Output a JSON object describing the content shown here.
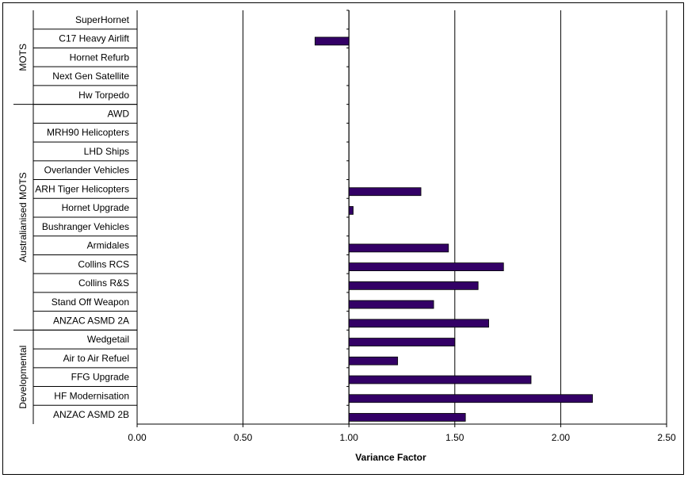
{
  "chart_data": {
    "type": "bar",
    "orientation": "horizontal",
    "title": "",
    "xlabel": "Variance Factor",
    "ylabel": "",
    "xlim": [
      0,
      2.5
    ],
    "x_ticks": [
      "0.00",
      "0.50",
      "1.00",
      "1.50",
      "2.00",
      "2.50"
    ],
    "x_tick_values": [
      0,
      0.5,
      1.0,
      1.5,
      2.0,
      2.5
    ],
    "baseline": 1.0,
    "grid": "vertical major gridlines",
    "legend": "none",
    "bar_color": "#330066",
    "categories": [
      "SuperHornet",
      "C17 Heavy Airlift",
      "Hornet Refurb",
      "Next Gen Satellite",
      "Hw  Torpedo",
      "AWD",
      "MRH90 Helicopters",
      "LHD Ships",
      "Overlander Vehicles",
      "ARH Tiger Helicopters",
      "Hornet Upgrade",
      "Bushranger Vehicles",
      "Armidales",
      "Collins RCS",
      "Collins R&S",
      "Stand Off Weapon",
      "ANZAC ASMD 2A",
      "Wedgetail",
      "Air to Air Refuel",
      "FFG Upgrade",
      "HF Modernisation",
      "ANZAC ASMD 2B"
    ],
    "values": [
      null,
      0.84,
      null,
      null,
      null,
      null,
      null,
      null,
      null,
      1.34,
      1.02,
      null,
      1.47,
      1.73,
      1.61,
      1.4,
      1.66,
      1.5,
      1.23,
      1.86,
      2.15,
      1.55
    ],
    "groups": [
      {
        "name": "MOTS",
        "count": 5
      },
      {
        "name": "Australianised MOTS",
        "count": 12
      },
      {
        "name": "Developmental",
        "count": 5
      }
    ]
  }
}
